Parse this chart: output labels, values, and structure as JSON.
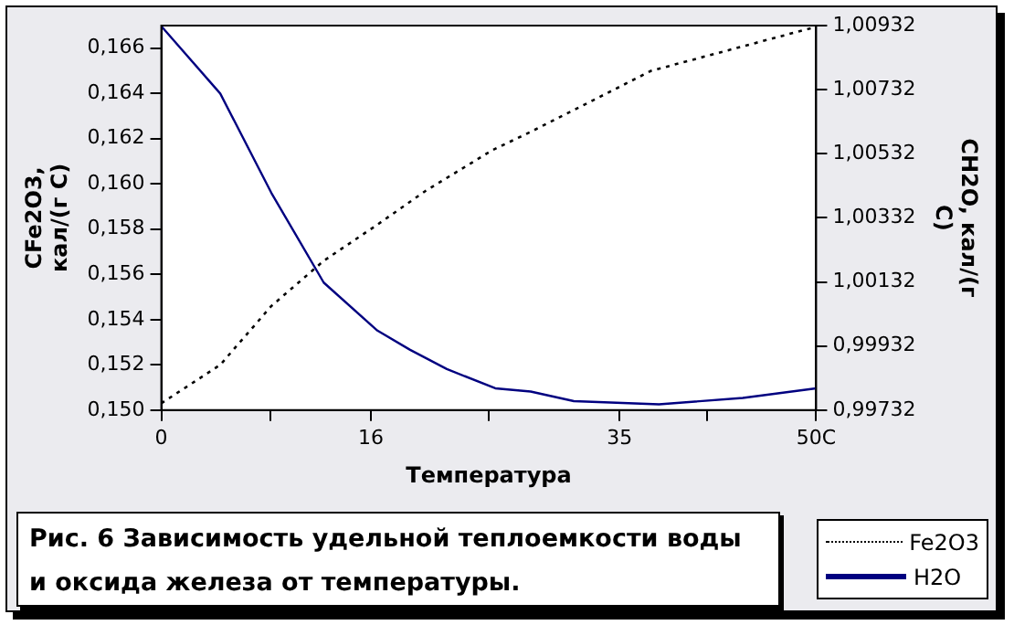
{
  "chart_data": {
    "type": "line",
    "title": "Рис. 6 Зависимость удельной теплоемкости воды и оксида железа от температуры.",
    "xlabel": "Температура",
    "ylabel": "CFe2O3, кал/(г С)",
    "y2label": "CH2O, кал/(г С)",
    "xlim": [
      0,
      50
    ],
    "xticks": [
      0,
      {
        "value": 8.333,
        "label": null
      },
      16,
      {
        "value": 25,
        "label": null
      },
      35,
      {
        "value": 41.667,
        "label": null
      },
      {
        "value": 50,
        "label": "50C"
      }
    ],
    "ylim": [
      0.15,
      0.167
    ],
    "yticks": [
      {
        "value": 0.15,
        "label": "0,150"
      },
      {
        "value": 0.152,
        "label": "0,152"
      },
      {
        "value": 0.154,
        "label": "0,154"
      },
      {
        "value": 0.156,
        "label": "0,156"
      },
      {
        "value": 0.158,
        "label": "0,158"
      },
      {
        "value": 0.16,
        "label": "0,160"
      },
      {
        "value": 0.162,
        "label": "0,162"
      },
      {
        "value": 0.164,
        "label": "0,164"
      },
      {
        "value": 0.166,
        "label": "0,166"
      }
    ],
    "y2lim": [
      0.99732,
      1.00932
    ],
    "y2ticks": [
      {
        "value": 0.99732,
        "label": "0,99732"
      },
      {
        "value": 0.99932,
        "label": "0,99932"
      },
      {
        "value": 1.00132,
        "label": "1,00132"
      },
      {
        "value": 1.00332,
        "label": "1,00332"
      },
      {
        "value": 1.00532,
        "label": "1,00532"
      },
      {
        "value": 1.00732,
        "label": "1,00732"
      },
      {
        "value": 1.00932,
        "label": "1,00932"
      }
    ],
    "grid": false,
    "legend": "bottom right",
    "marker": "none",
    "series": [
      {
        "name": "Fe2O3",
        "color": "#000000",
        "line_style": "dotted",
        "x": [
          0,
          4.5,
          8.4,
          12.4,
          16.5,
          20.2,
          25.3,
          28.2,
          37.4,
          49.7
        ],
        "values": [
          0.1503,
          0.152,
          0.1546,
          0.1566,
          0.1582,
          0.1597,
          0.1615,
          0.1623,
          0.165,
          0.1669
        ]
      },
      {
        "name": "H2O",
        "color": "#000080",
        "line_style": "solid",
        "axis": "y2",
        "x": [
          0,
          4.5,
          8.4,
          12.4,
          16.5,
          19,
          21.8,
          25.5,
          28.2,
          31.5,
          38,
          44.4,
          50
        ],
        "values": [
          1.0093,
          1.0072,
          1.0041,
          1.0013,
          0.9998,
          0.9992,
          0.9986,
          0.998,
          0.9979,
          0.9976,
          0.9975,
          0.9977,
          0.998
        ]
      }
    ]
  }
}
